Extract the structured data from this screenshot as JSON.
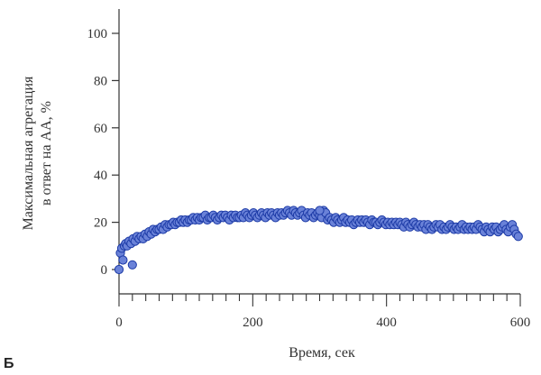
{
  "panel_label": "Б",
  "chart_data": {
    "type": "scatter",
    "xlabel": "Время, сек",
    "ylabel_lines": [
      "Максимальная агрегация",
      "в ответ на АА, %"
    ],
    "xlim": [
      0,
      600
    ],
    "ylim": [
      -10,
      110
    ],
    "xticks": [
      0,
      200,
      400,
      600
    ],
    "xminor_step": 20,
    "yticks": [
      0,
      20,
      40,
      60,
      80,
      100
    ],
    "grid": false,
    "legend": "none",
    "marker_fill": "#6a82d8",
    "marker_stroke": "#1c3aa6",
    "series": [
      {
        "x": [
          0,
          2,
          4,
          6,
          8,
          10,
          12,
          15,
          18,
          21,
          24,
          27,
          30,
          33,
          36,
          39,
          42,
          45,
          48,
          51,
          54,
          57,
          60,
          63,
          66,
          69,
          72,
          75,
          78,
          81,
          84,
          87,
          90,
          93,
          96,
          99,
          102,
          105,
          108,
          111,
          114,
          117,
          120,
          123,
          126,
          129,
          132,
          135,
          138,
          141,
          144,
          147,
          150,
          153,
          156,
          159,
          162,
          165,
          168,
          171,
          174,
          177,
          180,
          183,
          186,
          189,
          192,
          195,
          198,
          201,
          204,
          207,
          210,
          213,
          216,
          219,
          222,
          225,
          228,
          231,
          234,
          237,
          240,
          243,
          246,
          249,
          252,
          255,
          258,
          261,
          264,
          267,
          270,
          273,
          276,
          279,
          282,
          285,
          288,
          291,
          294,
          297,
          300,
          303,
          306,
          309,
          312,
          315,
          318,
          321,
          324,
          327,
          330,
          333,
          336,
          339,
          342,
          345,
          348,
          351,
          354,
          357,
          360,
          363,
          366,
          369,
          372,
          375,
          378,
          381,
          384,
          387,
          390,
          393,
          396,
          399,
          402,
          405,
          408,
          411,
          414,
          417,
          420,
          423,
          426,
          429,
          432,
          435,
          438,
          441,
          444,
          447,
          450,
          453,
          456,
          459,
          462,
          465,
          468,
          471,
          474,
          477,
          480,
          483,
          486,
          489,
          492,
          495,
          498,
          501,
          504,
          507,
          510,
          513,
          516,
          519,
          522,
          525,
          528,
          531,
          534,
          537,
          540,
          543,
          546,
          549,
          552,
          555,
          558,
          561,
          564,
          567,
          570,
          573,
          576,
          579,
          582,
          585,
          588,
          591,
          594,
          597,
          20,
          300
        ],
        "y": [
          0,
          7,
          9,
          4,
          10,
          11,
          10,
          12,
          11,
          13,
          12,
          14,
          13,
          14,
          13,
          15,
          14,
          16,
          15,
          17,
          16,
          17,
          17,
          18,
          17,
          19,
          18,
          19,
          19,
          20,
          19,
          20,
          20,
          21,
          20,
          21,
          20,
          21,
          21,
          22,
          21,
          22,
          21,
          22,
          22,
          23,
          21,
          22,
          22,
          23,
          22,
          21,
          22,
          23,
          22,
          23,
          22,
          21,
          23,
          22,
          23,
          22,
          22,
          23,
          22,
          24,
          23,
          22,
          23,
          24,
          23,
          22,
          23,
          24,
          23,
          22,
          24,
          23,
          24,
          23,
          22,
          24,
          23,
          24,
          23,
          24,
          25,
          24,
          23,
          25,
          24,
          23,
          24,
          25,
          23,
          22,
          24,
          23,
          24,
          22,
          23,
          24,
          23,
          22,
          25,
          24,
          21,
          22,
          21,
          20,
          22,
          21,
          20,
          21,
          22,
          20,
          21,
          20,
          21,
          19,
          20,
          21,
          20,
          21,
          20,
          21,
          20,
          19,
          21,
          20,
          20,
          19,
          20,
          21,
          20,
          19,
          20,
          19,
          20,
          19,
          20,
          19,
          20,
          19,
          18,
          20,
          19,
          18,
          19,
          20,
          19,
          18,
          19,
          18,
          19,
          17,
          19,
          18,
          17,
          18,
          19,
          18,
          19,
          17,
          18,
          17,
          18,
          19,
          18,
          17,
          18,
          17,
          18,
          19,
          17,
          18,
          17,
          18,
          17,
          18,
          17,
          19,
          18,
          17,
          16,
          18,
          17,
          16,
          18,
          17,
          18,
          16,
          17,
          18,
          19,
          17,
          16,
          18,
          19,
          17,
          15,
          14,
          2,
          25
        ]
      }
    ]
  }
}
